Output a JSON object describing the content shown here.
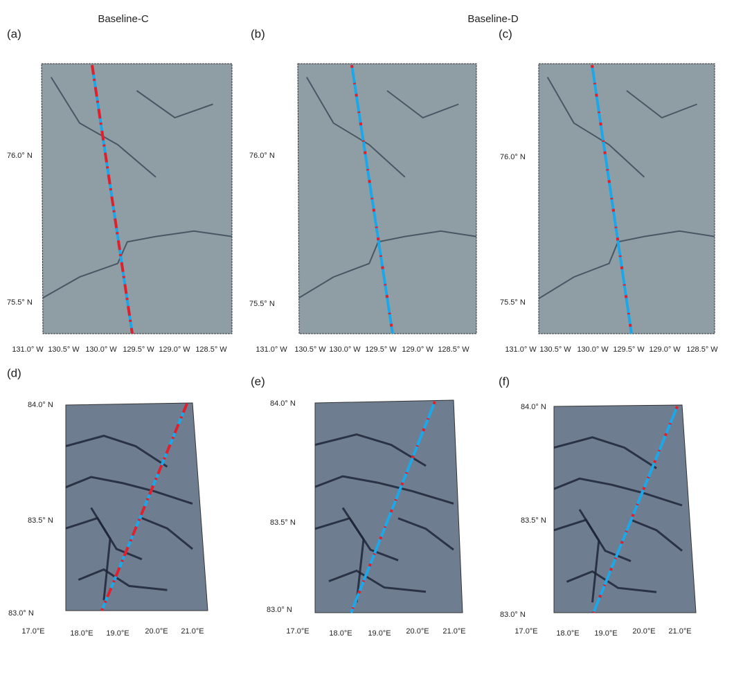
{
  "headers": [
    "Baseline-C",
    "Baseline-D"
  ],
  "panels": [
    {
      "label": "(a)",
      "lat_labels": [
        "76.0° N",
        "75.5° N"
      ],
      "lon_labels": [
        "131.0° W",
        "130.5° W",
        "130.0° W",
        "129.5° W",
        "129.0° W",
        "128.5° W"
      ]
    },
    {
      "label": "(b)",
      "lat_labels": [
        "76.0° N",
        "75.5° N"
      ],
      "lon_labels": [
        "131.0° W",
        "130.5° W",
        "130.0° W",
        "129.5° W",
        "129.0° W",
        "128.5° W"
      ]
    },
    {
      "label": "(c)",
      "lat_labels": [
        "76.0° N",
        "75.5° N"
      ],
      "lon_labels": [
        "131.0° W",
        "130.5° W",
        "130.0° W",
        "129.5° W",
        "129.0° W",
        "128.5° W"
      ]
    },
    {
      "label": "(d)",
      "lat_labels": [
        "84.0° N",
        "83.5° N",
        "83.0° N"
      ],
      "lon_labels": [
        "17.0°E",
        "18.0°E",
        "19.0°E",
        "20.0°E",
        "21.0°E"
      ]
    },
    {
      "label": "(e)",
      "lat_labels": [
        "84.0° N",
        "83.5° N",
        "83.0° N"
      ],
      "lon_labels": [
        "17.0°E",
        "18.0°E",
        "19.0°E",
        "20.0°E",
        "21.0°E"
      ]
    },
    {
      "label": "(f)",
      "lat_labels": [
        "84.0° N",
        "83.5° N",
        "83.0° N"
      ],
      "lon_labels": [
        "17.0°E",
        "18.0°E",
        "19.0°E",
        "20.0°E",
        "21.0°E"
      ]
    }
  ]
}
